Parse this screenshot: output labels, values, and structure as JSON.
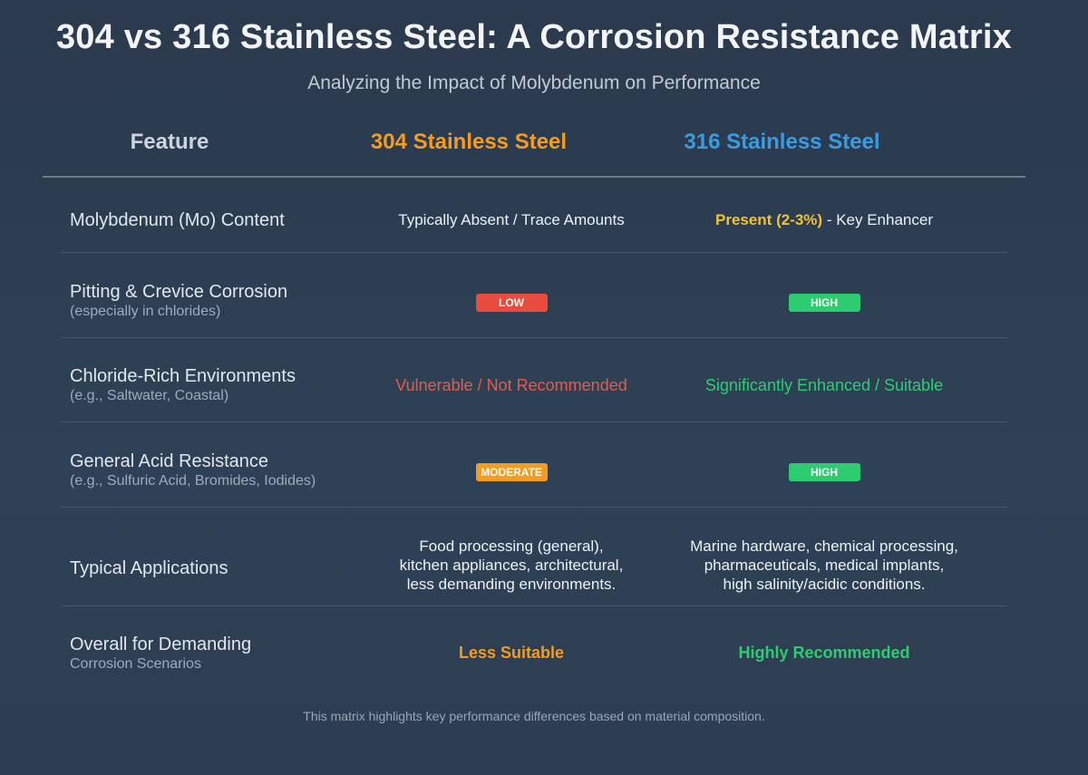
{
  "title": "304 vs 316 Stainless Steel: A Corrosion Resistance Matrix",
  "subtitle": "Analyzing the Impact of Molybdenum on Performance",
  "colors": {
    "accent_304": "#f39c1f",
    "accent_316": "#3a9be0",
    "low": "#e74c3c",
    "moderate": "#f39c1f",
    "high": "#2ecc71",
    "highlight": "#f2c232"
  },
  "headers": {
    "feature": "Feature",
    "steel_304": "304 Stainless Steel",
    "steel_316": "316 Stainless Steel"
  },
  "rows": {
    "mo": {
      "feature": "Molybdenum (Mo) Content",
      "v304": "Typically Absent / Trace Amounts",
      "v316_highlight": "Present (2-3%)",
      "v316_rest": " - Key Enhancer"
    },
    "pitting": {
      "feature": "Pitting & Crevice Corrosion",
      "note": "(especially in chlorides)",
      "v304": "LOW",
      "v316": "HIGH"
    },
    "chloride": {
      "feature": "Chloride-Rich Environments",
      "note": "(e.g., Saltwater, Coastal)",
      "v304": "Vulnerable / Not Recommended",
      "v316": "Significantly Enhanced / Suitable"
    },
    "acid": {
      "feature": "General Acid Resistance",
      "note": "(e.g., Sulfuric Acid, Bromides, Iodides)",
      "v304": "MODERATE",
      "v316": "HIGH"
    },
    "apps": {
      "feature": "Typical Applications",
      "v304_lines": [
        "Food processing (general),",
        "kitchen appliances, architectural,",
        "less demanding environments."
      ],
      "v316_lines": [
        "Marine hardware, chemical processing,",
        "pharmaceuticals, medical implants,",
        "high salinity/acidic conditions."
      ]
    },
    "overall": {
      "feature": "Overall for Demanding",
      "note": "Corrosion Scenarios",
      "v304": "Less Suitable",
      "v316": "Highly Recommended"
    }
  },
  "footnote": "This matrix highlights key performance differences based on material composition."
}
